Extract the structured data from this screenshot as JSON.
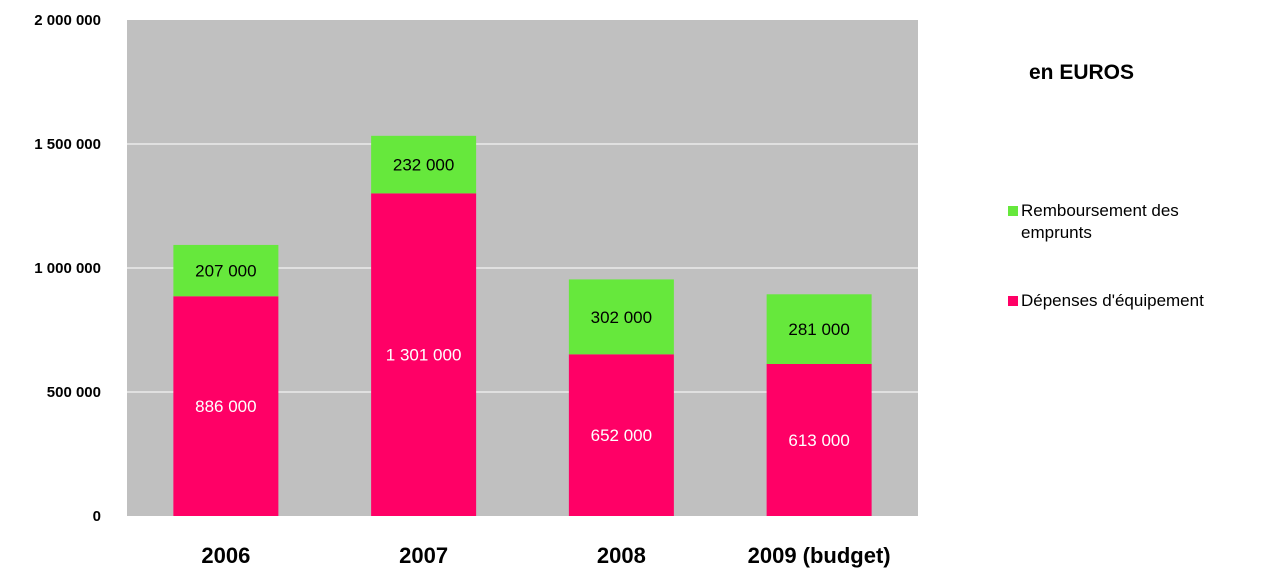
{
  "colors": {
    "plot_bg": "#c0c0c0",
    "grid": "#ffffff",
    "equipement": "#ff0066",
    "emprunts": "#66e83c"
  },
  "unit_label": "en EUROS",
  "chart_data": {
    "type": "bar",
    "stacked": true,
    "categories": [
      "2006",
      "2007",
      "2008",
      "2009 (budget)"
    ],
    "series": [
      {
        "name": "Dépenses d'équipement",
        "values": [
          886000,
          1301000,
          652000,
          613000
        ],
        "labels": [
          "886 000",
          "1 301 000",
          "652 000",
          "613 000"
        ],
        "color": "#ff0066",
        "label_color": "#ffffff"
      },
      {
        "name": "Remboursement des emprunts",
        "values": [
          207000,
          232000,
          302000,
          281000
        ],
        "labels": [
          "207 000",
          "232 000",
          "302 000",
          "281 000"
        ],
        "color": "#66e83c",
        "label_color": "#000000"
      }
    ],
    "ylim": [
      0,
      2000000
    ],
    "yticks": [
      0,
      500000,
      1000000,
      1500000,
      2000000
    ],
    "ytick_labels": [
      "0",
      "500 000",
      "1 000 000",
      "1 500 000",
      "2 000 000"
    ],
    "grid": true,
    "legend": [
      {
        "name": "Remboursement des emprunts",
        "color": "#66e83c"
      },
      {
        "name": "Dépenses d'équipement",
        "color": "#ff0066"
      }
    ],
    "legend_position": "right"
  }
}
